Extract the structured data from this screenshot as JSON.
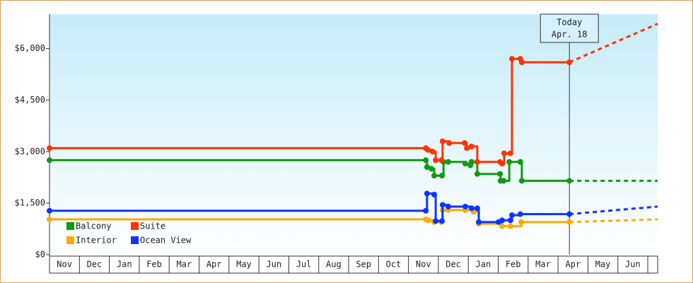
{
  "chart_data": {
    "type": "step-line",
    "months": [
      "Nov",
      "Dec",
      "Jan",
      "Feb",
      "Mar",
      "Apr",
      "May",
      "Jun",
      "Jul",
      "Aug",
      "Sep",
      "Oct",
      "Nov",
      "Dec",
      "Jan",
      "Feb",
      "Mar",
      "Apr",
      "May",
      "Jun"
    ],
    "xlim": [
      0,
      20.33
    ],
    "ylim": [
      0,
      7000
    ],
    "yticks": [
      {
        "value": 0,
        "label": "$0"
      },
      {
        "value": 1500,
        "label": "$1,500"
      },
      {
        "value": 3000,
        "label": "$3,000"
      },
      {
        "value": 4500,
        "label": "$4,500"
      },
      {
        "value": 6000,
        "label": "$6,000"
      }
    ],
    "today": {
      "x": 17.38,
      "label": "Today",
      "date": "Apr. 18"
    },
    "series": [
      {
        "name": "Balcony",
        "color": "#119911",
        "x": [
          0,
          12.58,
          12.62,
          12.77,
          12.86,
          13.12,
          13.17,
          13.33,
          13.9,
          14.07,
          14.11,
          14.3,
          15.06,
          15.08,
          15.18,
          15.37,
          15.74,
          15.79,
          17.38
        ],
        "values": [
          2750,
          2750,
          2550,
          2500,
          2300,
          2300,
          2700,
          2700,
          2650,
          2600,
          2700,
          2350,
          2350,
          2150,
          2150,
          2700,
          2700,
          2150,
          2150
        ],
        "forecast": {
          "x": [
            17.38,
            20.33
          ],
          "values": [
            2150,
            2150
          ]
        }
      },
      {
        "name": "Suite",
        "color": "#ff3300",
        "x": [
          0,
          12.58,
          12.65,
          12.81,
          12.91,
          13.1,
          13.14,
          13.36,
          13.88,
          13.95,
          14.11,
          14.3,
          15.06,
          15.13,
          15.2,
          15.41,
          15.46,
          15.74,
          15.79,
          17.38
        ],
        "values": [
          3100,
          3100,
          3050,
          3000,
          2750,
          2750,
          3300,
          3250,
          3250,
          3100,
          3150,
          2700,
          2700,
          2650,
          2950,
          2950,
          5700,
          5700,
          5600,
          5600
        ],
        "forecast": {
          "x": [
            17.38,
            20.33
          ],
          "values": [
            5600,
            6720
          ]
        }
      },
      {
        "name": "Interior",
        "color": "#ffaa00",
        "x": [
          0,
          12.58,
          12.67,
          12.86,
          13.1,
          13.14,
          13.33,
          13.9,
          14.18,
          14.35,
          15.13,
          15.41,
          15.77,
          17.38
        ],
        "values": [
          1030,
          1030,
          1000,
          950,
          950,
          1300,
          1300,
          1300,
          1250,
          900,
          830,
          830,
          950,
          950
        ],
        "forecast": {
          "x": [
            17.38,
            20.33
          ],
          "values": [
            950,
            1030
          ]
        }
      },
      {
        "name": "Ocean View",
        "color": "#1133ff",
        "x": [
          0,
          12.58,
          12.62,
          12.86,
          12.91,
          13.12,
          13.14,
          13.33,
          13.9,
          14.11,
          14.3,
          14.35,
          15.01,
          15.13,
          15.41,
          15.46,
          15.74,
          17.38
        ],
        "values": [
          1280,
          1280,
          1780,
          1750,
          980,
          980,
          1450,
          1400,
          1400,
          1350,
          1350,
          950,
          950,
          1000,
          1000,
          1150,
          1180,
          1180
        ],
        "forecast": {
          "x": [
            17.38,
            20.33
          ],
          "values": [
            1180,
            1400
          ]
        }
      }
    ]
  }
}
